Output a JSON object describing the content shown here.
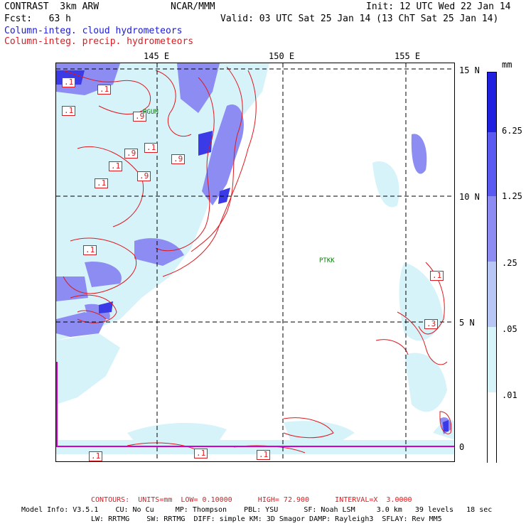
{
  "header": {
    "title": "CONTRAST  3km ARW",
    "center": "NCAR/MMM",
    "init": "Init: 12 UTC Wed 22 Jan 14",
    "fcst": "Fcst:   63 h",
    "valid": "Valid: 03 UTC Sat 25 Jan 14 (13 ChT Sat 25 Jan 14)",
    "field1": "Column-integ. cloud hydrometeors",
    "field2": "Column-integ. precip. hydrometeors"
  },
  "map": {
    "lon_labels": [
      "145 E",
      "150 E",
      "155 E"
    ],
    "lat_labels": [
      "15 N",
      "10 N",
      "5 N",
      "0"
    ],
    "stations": [
      {
        "name": "PGUM",
        "label": "PGUM"
      },
      {
        "name": "PTKK",
        "label": "PTKK"
      }
    ],
    "contour_labels": [
      ".1",
      ".1",
      ".1",
      ".9",
      ".1",
      ".9",
      ".9",
      ".1",
      ".1",
      ".9",
      ".1",
      ".1",
      ".3",
      ".1",
      ".1",
      ".1"
    ]
  },
  "colorbar": {
    "units": "mm",
    "labels": [
      "6.25",
      "1.25",
      ".25",
      ".05",
      ".01"
    ],
    "colors": [
      "#2020e0",
      "#5a5af0",
      "#8c8cf2",
      "#b8c6f6",
      "#d6f3fa",
      "#ffffff"
    ]
  },
  "footer": {
    "contours": "CONTOURS:  UNITS=mm  LOW= 0.10000      HIGH= 72.900      INTERVAL=X  3.0000",
    "model1": "Model Info: V3.5.1    CU: No Cu     MP: Thompson    PBL: YSU      SF: Noah LSM     3.0 km   39 levels   18 sec",
    "model2": "LW: RRTMG    SW: RRTMG  DIFF: simple KM: 3D Smagor DAMP: Rayleigh3  SFLAY: Rev MM5"
  },
  "colors": {
    "contour": "#e0191e",
    "grid": "#000000",
    "cloud_light": "#d6f3fa",
    "cloud_mid": "#8c8cf2",
    "cloud_dark": "#3a3ae6"
  }
}
